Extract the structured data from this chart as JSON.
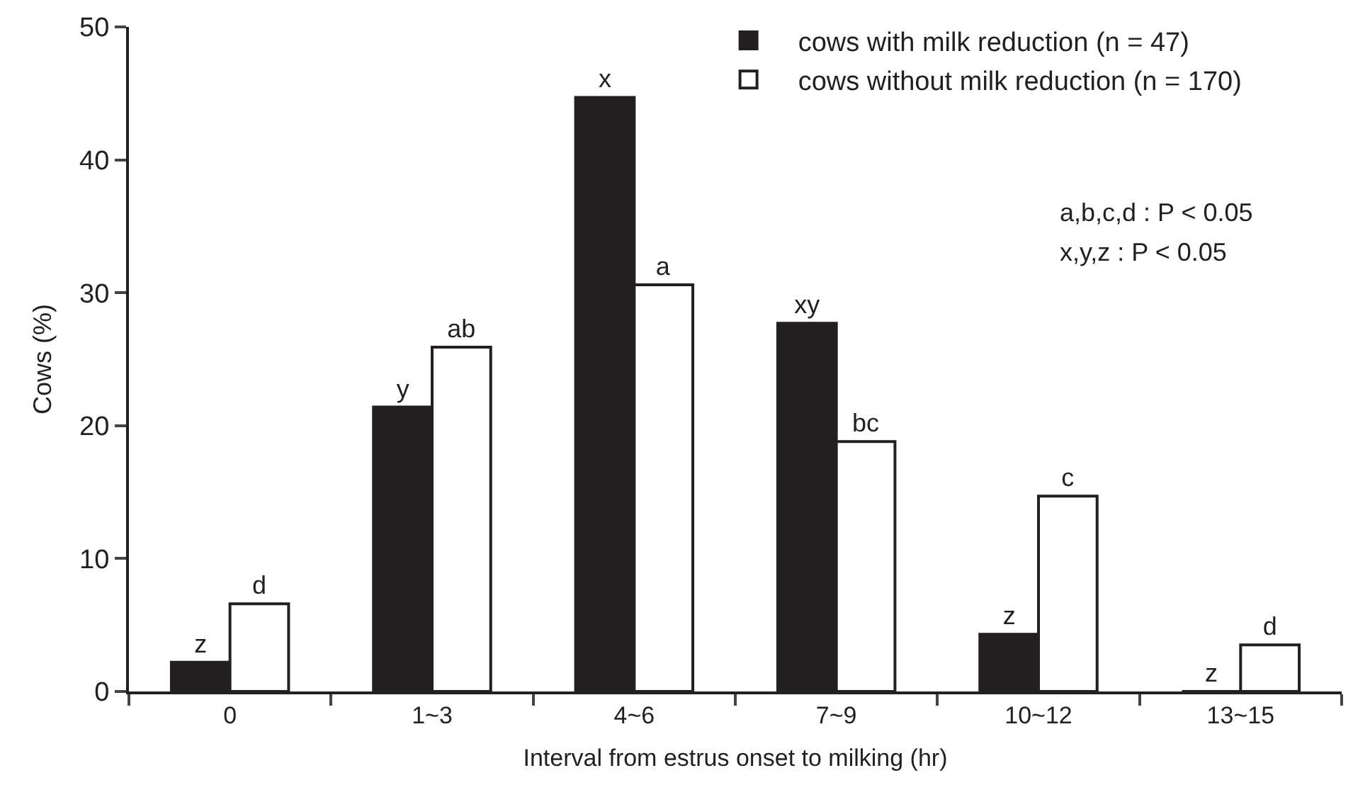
{
  "chart_data": {
    "type": "bar",
    "xlabel": "Interval from estrus onset to milking (hr)",
    "ylabel": "Cows (%)",
    "categories": [
      "0",
      "1~3",
      "4~6",
      "7~9",
      "10~12",
      "13~15"
    ],
    "series": [
      {
        "name": "cows with milk reduction (n = 47)",
        "color": "#231f20",
        "values": [
          2.2,
          21.4,
          44.7,
          27.7,
          4.3,
          0
        ],
        "value_labels": [
          "z",
          "y",
          "x",
          "xy",
          "z",
          "z"
        ]
      },
      {
        "name": "cows without milk reduction (n = 170)",
        "color": "#ffffff",
        "values": [
          6.6,
          25.9,
          30.6,
          18.8,
          14.7,
          3.5
        ],
        "value_labels": [
          "d",
          "ab",
          "a",
          "bc",
          "c",
          "d"
        ]
      }
    ],
    "ylim": [
      0,
      50
    ],
    "yticks": [
      0,
      10,
      20,
      30,
      40,
      50
    ],
    "legend": "top right",
    "annotations": [
      "a,b,c,d : P < 0.05",
      "x,y,z : P < 0.05"
    ]
  }
}
